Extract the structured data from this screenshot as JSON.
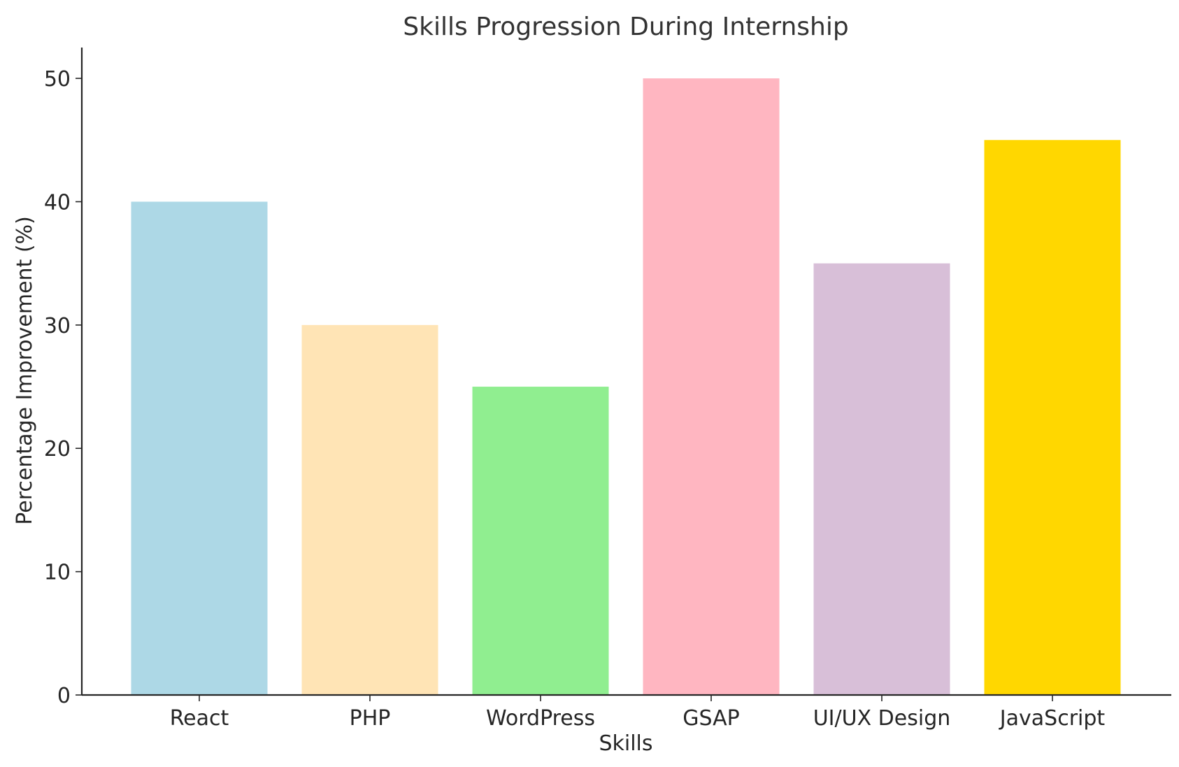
{
  "chart_data": {
    "type": "bar",
    "title": "Skills Progression During Internship",
    "xlabel": "Skills",
    "ylabel": "Percentage Improvement (%)",
    "categories": [
      "React",
      "PHP",
      "WordPress",
      "GSAP",
      "UI/UX Design",
      "JavaScript"
    ],
    "values": [
      40,
      30,
      25,
      50,
      35,
      45
    ],
    "colors": [
      "#add8e6",
      "#ffe4b5",
      "#90ee90",
      "#ffb6c1",
      "#d8bfd8",
      "#ffd700"
    ],
    "ylim": [
      0,
      52.5
    ],
    "yticks": [
      0,
      10,
      20,
      30,
      40,
      50
    ],
    "grid": false,
    "legend": "none"
  }
}
